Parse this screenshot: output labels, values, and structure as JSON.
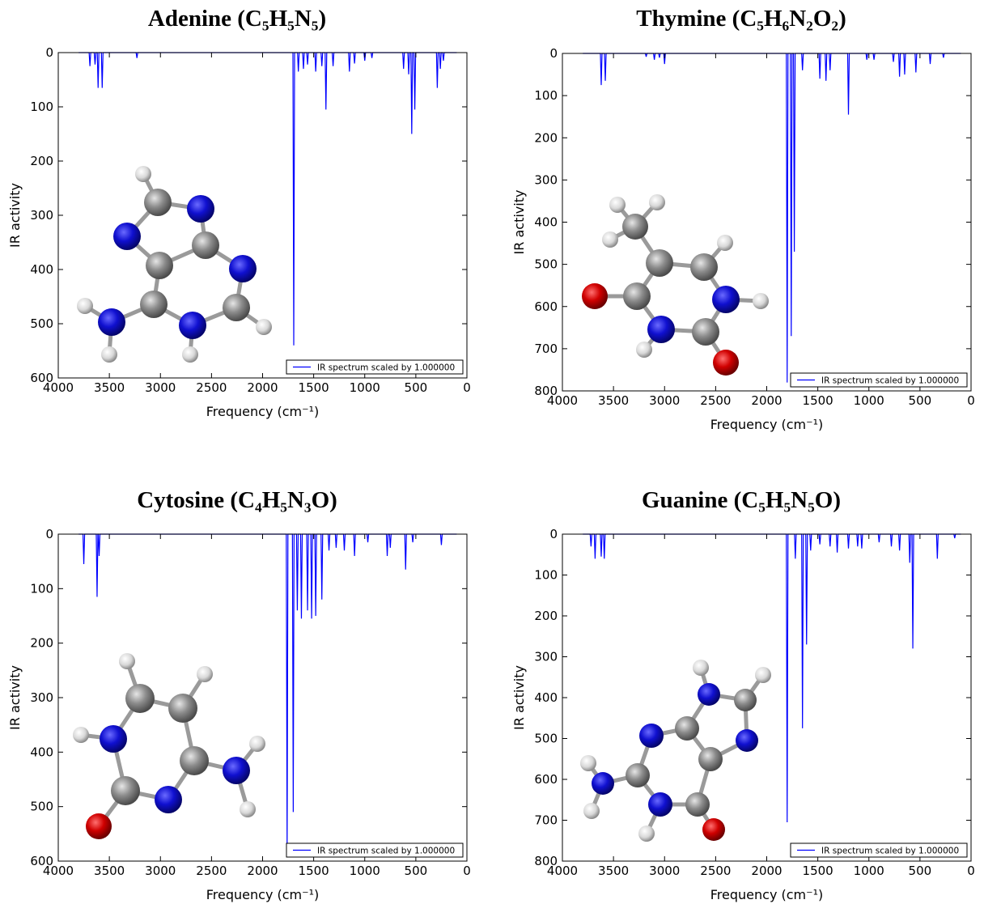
{
  "chart_data": [
    {
      "type": "line",
      "title": "Adenine (C₅H₅N₅)",
      "xlabel": "Frequency (cm⁻¹)",
      "ylabel": "IR activity",
      "xlim": [
        4000,
        0
      ],
      "xticks": [
        4000,
        3500,
        3000,
        2500,
        2000,
        1500,
        1000,
        500,
        0
      ],
      "ylim": [
        0,
        600
      ],
      "yticks": [
        0,
        100,
        200,
        300,
        400,
        500,
        600
      ],
      "y_inverted": true,
      "legend": "lower right",
      "x": [
        3800,
        3698,
        3690,
        3682,
        3648,
        3640,
        3632,
        3618,
        3610,
        3602,
        3578,
        3570,
        3562,
        3238,
        3230,
        3222,
        1703,
        1695,
        1687,
        1658,
        1650,
        1642,
        1608,
        1600,
        1592,
        1568,
        1560,
        1552,
        1488,
        1480,
        1472,
        1428,
        1420,
        1412,
        1388,
        1380,
        1372,
        1318,
        1310,
        1302,
        1158,
        1150,
        1142,
        1108,
        1100,
        1092,
        1008,
        1000,
        992,
        938,
        930,
        922,
        628,
        620,
        612,
        578,
        570,
        562,
        548,
        540,
        532,
        518,
        510,
        502,
        298,
        290,
        282,
        268,
        260,
        252,
        238,
        230,
        222,
        100
      ],
      "series": [
        {
          "name": "IR spectrum scaled by 1.000000",
          "color": "#0000ff",
          "values": [
            0,
            0,
            25,
            0,
            0,
            22,
            0,
            0,
            65,
            0,
            0,
            65,
            0,
            0,
            10,
            0,
            0,
            540,
            0,
            0,
            35,
            0,
            0,
            30,
            0,
            0,
            22,
            0,
            0,
            35,
            0,
            0,
            25,
            0,
            0,
            105,
            0,
            0,
            25,
            0,
            0,
            35,
            0,
            0,
            20,
            0,
            0,
            15,
            0,
            0,
            10,
            0,
            0,
            30,
            0,
            0,
            40,
            0,
            0,
            150,
            0,
            0,
            105,
            0,
            0,
            65,
            0,
            0,
            30,
            0,
            0,
            15,
            0,
            0
          ]
        }
      ]
    },
    {
      "type": "line",
      "title": "Thymine (C₅H₆N₂O₂)",
      "xlabel": "Frequency (cm⁻¹)",
      "ylabel": "IR activity",
      "xlim": [
        4000,
        0
      ],
      "xticks": [
        4000,
        3500,
        3000,
        2500,
        2000,
        1500,
        1000,
        500,
        0
      ],
      "ylim": [
        0,
        800
      ],
      "yticks": [
        0,
        100,
        200,
        300,
        400,
        500,
        600,
        700,
        800
      ],
      "y_inverted": true,
      "legend": "lower right",
      "x": [
        3800,
        3628,
        3620,
        3612,
        3588,
        3580,
        3572,
        3188,
        3180,
        3172,
        3108,
        3100,
        3092,
        3058,
        3050,
        3042,
        3008,
        3000,
        2992,
        1808,
        1800,
        1792,
        1768,
        1760,
        1752,
        1738,
        1730,
        1722,
        1658,
        1650,
        1642,
        1488,
        1480,
        1472,
        1428,
        1420,
        1412,
        1388,
        1380,
        1372,
        1208,
        1200,
        1192,
        1028,
        1020,
        1012,
        958,
        950,
        942,
        768,
        760,
        752,
        708,
        700,
        692,
        658,
        650,
        642,
        548,
        540,
        532,
        408,
        400,
        392,
        278,
        270,
        262,
        100
      ],
      "series": [
        {
          "name": "IR spectrum scaled by 1.000000",
          "color": "#0000ff",
          "values": [
            0,
            0,
            75,
            0,
            0,
            65,
            0,
            0,
            8,
            0,
            0,
            15,
            0,
            0,
            10,
            0,
            0,
            25,
            0,
            0,
            780,
            0,
            0,
            670,
            0,
            0,
            470,
            0,
            0,
            40,
            0,
            0,
            60,
            0,
            0,
            65,
            0,
            0,
            40,
            0,
            0,
            145,
            0,
            0,
            15,
            0,
            0,
            15,
            0,
            0,
            20,
            0,
            0,
            55,
            0,
            0,
            50,
            0,
            0,
            45,
            0,
            0,
            25,
            0,
            0,
            10,
            0,
            0
          ]
        }
      ]
    },
    {
      "type": "line",
      "title": "Cytosine (C₄H₅N₃O)",
      "xlabel": "Frequency (cm⁻¹)",
      "ylabel": "IR activity",
      "xlim": [
        4000,
        0
      ],
      "xticks": [
        4000,
        3500,
        3000,
        2500,
        2000,
        1500,
        1000,
        500,
        0
      ],
      "ylim": [
        0,
        600
      ],
      "yticks": [
        0,
        100,
        200,
        300,
        400,
        500,
        600
      ],
      "y_inverted": true,
      "legend": "lower right",
      "x": [
        3800,
        3758,
        3750,
        3742,
        3628,
        3620,
        3612,
        3608,
        3600,
        3592,
        1768,
        1760,
        1752,
        1708,
        1700,
        1692,
        1668,
        1660,
        1652,
        1628,
        1620,
        1612,
        1568,
        1560,
        1552,
        1528,
        1520,
        1512,
        1488,
        1480,
        1472,
        1428,
        1420,
        1412,
        1358,
        1350,
        1342,
        1288,
        1280,
        1272,
        1208,
        1200,
        1192,
        1108,
        1100,
        1092,
        978,
        970,
        962,
        788,
        780,
        772,
        758,
        750,
        742,
        608,
        600,
        592,
        538,
        530,
        522,
        258,
        250,
        242,
        100
      ],
      "series": [
        {
          "name": "IR spectrum scaled by 1.000000",
          "color": "#0000ff",
          "values": [
            0,
            0,
            55,
            0,
            0,
            115,
            0,
            0,
            40,
            0,
            0,
            590,
            0,
            0,
            510,
            0,
            0,
            140,
            0,
            0,
            155,
            0,
            0,
            140,
            0,
            0,
            155,
            0,
            0,
            150,
            0,
            0,
            120,
            0,
            0,
            30,
            0,
            0,
            25,
            0,
            0,
            30,
            0,
            0,
            40,
            0,
            0,
            15,
            0,
            0,
            40,
            0,
            0,
            25,
            0,
            0,
            65,
            0,
            0,
            15,
            0,
            0,
            20,
            0,
            0
          ]
        }
      ]
    },
    {
      "type": "line",
      "title": "Guanine (C₅H₅N₅O)",
      "xlabel": "Frequency (cm⁻¹)",
      "ylabel": "IR activity",
      "xlim": [
        4000,
        0
      ],
      "xticks": [
        4000,
        3500,
        3000,
        2500,
        2000,
        1500,
        1000,
        500,
        0
      ],
      "ylim": [
        0,
        800
      ],
      "yticks": [
        0,
        100,
        200,
        300,
        400,
        500,
        600,
        700,
        800
      ],
      "y_inverted": true,
      "legend": "lower right",
      "x": [
        3800,
        3728,
        3720,
        3712,
        3688,
        3680,
        3672,
        3628,
        3620,
        3612,
        3598,
        3590,
        3582,
        1808,
        1800,
        1792,
        1728,
        1720,
        1712,
        1658,
        1650,
        1642,
        1618,
        1610,
        1602,
        1578,
        1570,
        1562,
        1488,
        1480,
        1472,
        1388,
        1380,
        1372,
        1318,
        1310,
        1302,
        1208,
        1200,
        1192,
        1118,
        1110,
        1102,
        1078,
        1070,
        1062,
        908,
        900,
        892,
        788,
        780,
        772,
        708,
        700,
        692,
        608,
        600,
        592,
        578,
        570,
        562,
        338,
        330,
        322,
        168,
        160,
        152,
        100
      ],
      "series": [
        {
          "name": "IR spectrum scaled by 1.000000",
          "color": "#0000ff",
          "values": [
            0,
            0,
            30,
            0,
            0,
            60,
            0,
            0,
            55,
            0,
            0,
            60,
            0,
            0,
            705,
            0,
            0,
            60,
            0,
            0,
            475,
            0,
            0,
            270,
            0,
            0,
            40,
            0,
            0,
            25,
            0,
            0,
            30,
            0,
            0,
            45,
            0,
            0,
            35,
            0,
            0,
            30,
            0,
            0,
            35,
            0,
            0,
            20,
            0,
            0,
            30,
            0,
            0,
            40,
            0,
            0,
            70,
            0,
            0,
            280,
            0,
            0,
            60,
            0,
            0,
            10,
            0,
            0
          ]
        }
      ]
    }
  ]
}
